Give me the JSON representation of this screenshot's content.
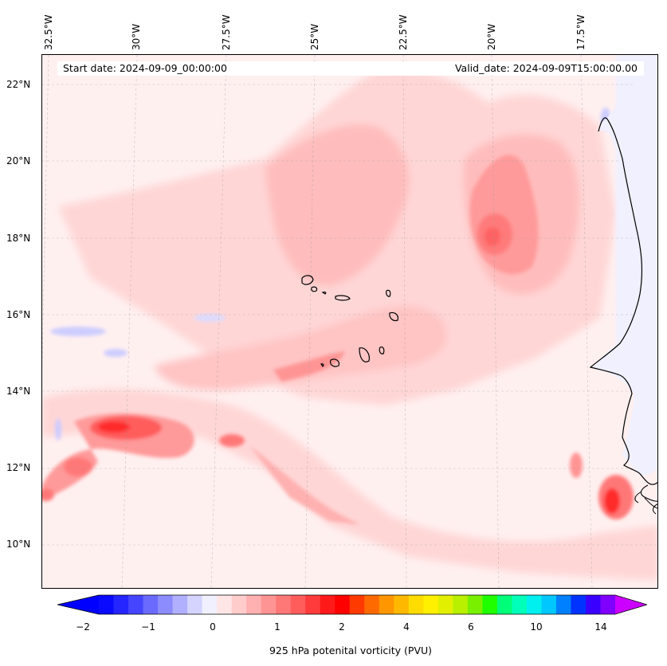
{
  "map": {
    "lon_labels": [
      "32.5°W",
      "30°W",
      "27.5°W",
      "25°W",
      "22.5°W",
      "20°W",
      "17.5°W"
    ],
    "lat_labels": [
      "22°N",
      "20°N",
      "18°N",
      "16°N",
      "14°N",
      "12°N",
      "10°N"
    ],
    "start_date": "Start date: 2024-09-09_00:00:00",
    "valid_date": "Valid_date: 2024-09-09T15:00:00.00",
    "background_color": "#fff0f0",
    "coast_color": "#000000"
  },
  "colorbar": {
    "title": "925 hPa potenital vorticity (PVU)",
    "tick_labels": [
      "−2",
      "−1",
      "0",
      "1",
      "2",
      "4",
      "6",
      "10",
      "14"
    ],
    "under_color": "#0000ff",
    "over_color": "#cc00ff",
    "colors": [
      "#0a0aff",
      "#2525ff",
      "#4545ff",
      "#6a6aff",
      "#8c8cff",
      "#b0b0ff",
      "#d4d4ff",
      "#f0f0ff",
      "#ffe6e6",
      "#ffcccc",
      "#ffb0b0",
      "#ff9494",
      "#ff7878",
      "#ff5c5c",
      "#ff3b3b",
      "#ff1a1a",
      "#ff0000",
      "#ff3a00",
      "#ff6a00",
      "#ff9600",
      "#ffb800",
      "#ffdc00",
      "#fff000",
      "#e2f000",
      "#b8f000",
      "#78f000",
      "#20ff00",
      "#00ff78",
      "#00ffb8",
      "#00f0f0",
      "#00c8ff",
      "#0080ff",
      "#0033ff",
      "#3a00ff",
      "#8000ff"
    ]
  }
}
